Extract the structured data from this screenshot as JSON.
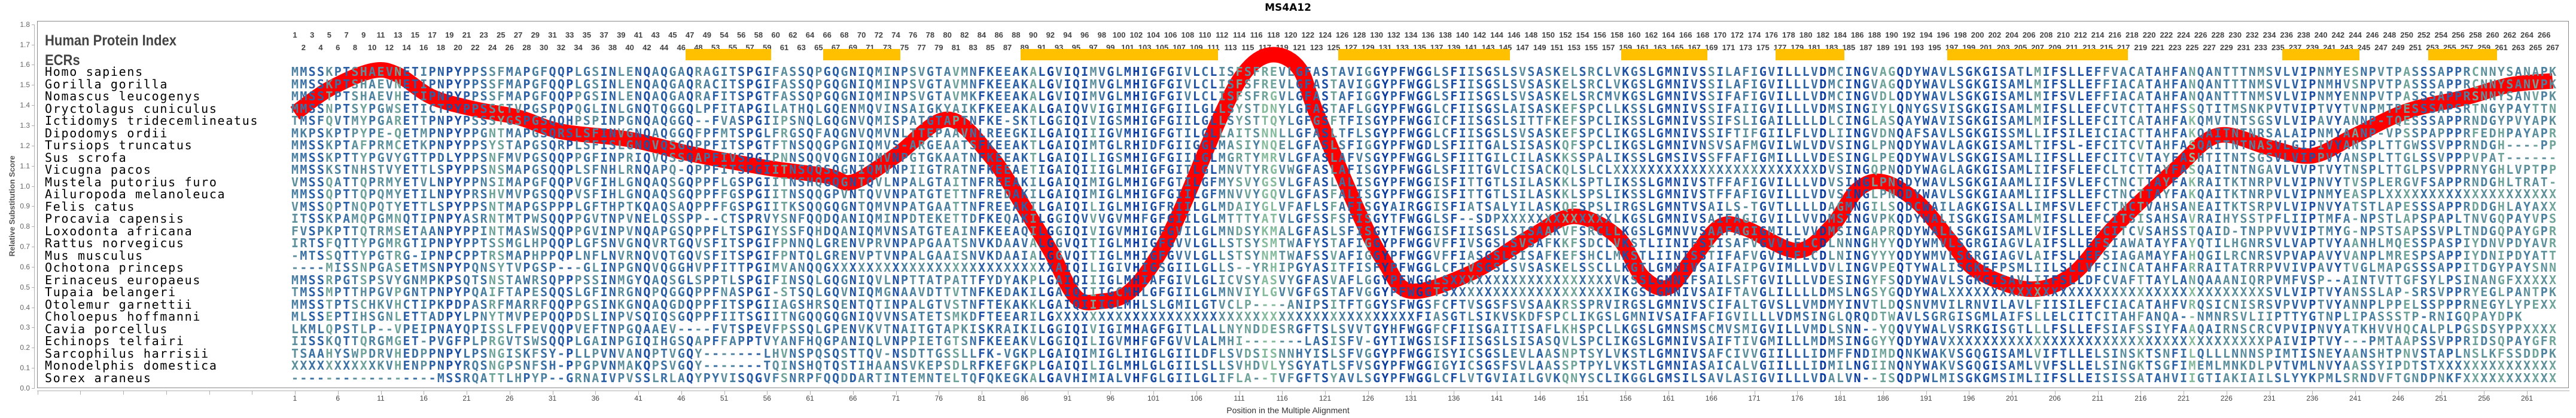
{
  "title": "MS4A12",
  "header": {
    "index_label": "Human Protein Index",
    "ecr_label": "ECRs"
  },
  "chart_data": {
    "type": "line",
    "title": "MS4A12",
    "xlabel": "Position in the Multiple Alignment",
    "ylabel": "Relative Substitution Score",
    "ylim": [
      0,
      1.8
    ],
    "ytick_step": 0.1,
    "xlim": [
      1,
      264
    ],
    "xtick_start": 1,
    "xtick_step": 5,
    "grid": false,
    "series": [
      {
        "name": "Relative Substitution Score",
        "color": "#ff0000",
        "points": [
          [
            1,
            1.36
          ],
          [
            5,
            1.48
          ],
          [
            10,
            1.57
          ],
          [
            13,
            1.55
          ],
          [
            17,
            1.44
          ],
          [
            22,
            1.38
          ],
          [
            27,
            1.34
          ],
          [
            32,
            1.27
          ],
          [
            40,
            1.23
          ],
          [
            47,
            1.16
          ],
          [
            56,
            1.09
          ],
          [
            63,
            1.05
          ],
          [
            66,
            1.02
          ],
          [
            71,
            1.15
          ],
          [
            77,
            1.33
          ],
          [
            82,
            1.15
          ],
          [
            86,
            0.89
          ],
          [
            89,
            0.68
          ],
          [
            92,
            0.45
          ],
          [
            95,
            0.43
          ],
          [
            98,
            0.47
          ],
          [
            101,
            0.62
          ],
          [
            104,
            0.86
          ],
          [
            109,
            1.36
          ],
          [
            112,
            1.58
          ],
          [
            115,
            1.65
          ],
          [
            118,
            1.58
          ],
          [
            120,
            1.36
          ],
          [
            125,
            0.86
          ],
          [
            128,
            0.62
          ],
          [
            131,
            0.48
          ],
          [
            138,
            0.57
          ],
          [
            145,
            0.75
          ],
          [
            150,
            0.85
          ],
          [
            155,
            0.75
          ],
          [
            158,
            0.55
          ],
          [
            161,
            0.5
          ],
          [
            164,
            0.65
          ],
          [
            167,
            0.8
          ],
          [
            170,
            0.79
          ],
          [
            176,
            0.68
          ],
          [
            180,
            0.8
          ],
          [
            183,
            0.98
          ],
          [
            186,
            1.02
          ],
          [
            190,
            0.92
          ],
          [
            194,
            0.72
          ],
          [
            197,
            0.58
          ],
          [
            203,
            0.49
          ],
          [
            208,
            0.56
          ],
          [
            213,
            0.8
          ],
          [
            220,
            1.08
          ],
          [
            225,
            1.25
          ],
          [
            231,
            1.19
          ],
          [
            236,
            1.15
          ],
          [
            241,
            1.25
          ],
          [
            247,
            1.37
          ],
          [
            254,
            1.44
          ],
          [
            259,
            1.5
          ],
          [
            264,
            1.52
          ]
        ]
      }
    ],
    "human_index": {
      "first": 1,
      "last": 267,
      "skipped": [
        50,
        51,
        52
      ]
    },
    "ecr_color": "#ffc000",
    "ecr_ranges": [
      [
        47,
        56
      ],
      [
        63,
        71
      ],
      [
        86,
        108
      ],
      [
        123,
        142
      ],
      [
        156,
        165
      ],
      [
        174,
        181
      ],
      [
        194,
        214
      ],
      [
        233,
        241
      ],
      [
        250,
        257
      ]
    ],
    "alignment": [
      {
        "species": "Homo sapiens",
        "sequence": "MMSSKPTSHAEVNETIPNPYPPSSFMAPGFQQPLGSINLENQAQGAQRAGITSPGIFASSQPGQGNIQMINPSVGTAVMNFKEEAKALGVIQIMVGLMHIGFGIVLCLISFSFREVLGFASTAVIGGYPFWGGLSFIISGSLSVSASKELSRCLVKGSLGMNIVSSILAFIGVILLLVDMCINGVAGQDYWAVLSGKGISATLMIFSLLEFFVACATAHFANQANTTTNMSVLVIPNMYESNPVTPASSSAPPRCNNYSANAPK"
      },
      {
        "species": "Gorilla gorilla",
        "sequence": "MMSSKPTSHAEVNETIPNPYPPSSFMAPGFQQPLGSINLENQAQGAQRACITSPGIFASSQPGQGNIQMINPSVGTAVMNFKEEAKALGVIQIMVGLMHIGFGIVLCLISFSFREVLGFASTAVIGGYPFWGGLSFIISGSLSVSASKELSRCLVKGSLGMNIVSSILAFIGVILLLVDMCINGVAGQDYWAVLSGKGISAMLMIFSLLEFFIACATAHFANQANTTTNMSVLVIPNMHVSNPVTPASSSAPPRCNNYSANVPK"
      },
      {
        "species": "Nomascus leucogenys",
        "sequence": "MMSSTPTSHAEVHETIPNPYPPSSFMAPGFQQPPGSINLENQAQGAQRAFITSPGTFASSQPGQGNIQMINPSVGTAVMKFKEEAKALGVIQIMVGLMHIGFGIVLCLISFSFRGVLGFASTAFIGGYPFWGGLSFIISGSLSVSASKELSRCMVKGSLGMNIVSSIFAFIGVILLLVDMCINGVDLQDYWAVLSGKGISAMLMIFSVLEFFIACATAHFANQANTTTNMSVLVIPNMYENNPVTPASSSAPPRSNNYSANVPK"
      },
      {
        "species": "Oryctolagus cuniculus",
        "sequence": "MMSSNPTSYPGWSETICTPYPPSSCTVPGSPQPQGLINLGNQTQGGQLPFITAPGILATHQLGQENMQVINSAIGKYAIKFKEEAKALGAIQVVIGIMHIGFGIILGLLSYSTDNYLGFASTAFLGGYPFWGGLCFIISGSLAISASKEFSPCLLKSSLGMNIVSSIFAIIGVILLLVDMSINGIYLQNYGSVISGKGISAMLMIFSLLEFCVTCTTAHFSSQTITMSNKPVTVIPTVYTVNPMTPESSSAPSRTNGYPAYTTN"
      },
      {
        "species": "Ictidomys tridecemlineatus",
        "sequence": "TMSFQVTMYPGARETTPNPYPSSSYGSPGSQQHPSPINPGNQAQGGQ--FVASPGIIPSNQLGQGNVQMISPATGTAPTNFKE-SKTLGGIQIVIGSMHIGFGIILGLLSYSTTQYLGFGSFTFISGYPFWGGICFIISGSLSITTFKEFSPCLIKSSLGMNIVSSIFSLIGAILLLLDLCINGLASQAYWAVISGKGISAMLMIFSLLEFCITCATAHFAKQMVTNTSGSVLVIPAVYANNP-TQESSSAPPRNDGYPVYAPK"
      },
      {
        "species": "Dipodomys ordii",
        "sequence": "MKPSKPTPYPE-QETMPNPYPPGNTMAPGSQRSLSFINVGNQAQGGQFPFMTSPGLFRGSQFAQGNVQMVNLTTEPAAVNLREEGKILGAIQIIIGVMHIGFGTILGLLAITSNNLLGFASLTFLSGYPFWGGLCFIISGSLSVSASKEFSPCLIKGSLGMNIVSSIFTIFGIILFLVDLIINGVDNQAFSAVLSGKGISSMLLIFSILEICIACTTAHFAKQAITNTNRSALAIPNMYAANP-VPSSPAPPPRFEDHPAYAPR"
      },
      {
        "species": "Tursiops truncatus",
        "sequence": "MMSSKPTAFPRMCETKPNPYPPSYSTAPGSQRPLSFISLGNQVQSGQPPFITSPGTFTNSQQGPGNIQMVS-ARGEAATSFKEEAKTLGAIQIMTGLRHIDFGIIGGLMASIYNQELGFASLSFIGGYPFWGDLSFIITGALSISASKQFSPCLIKGSLGMNIVNSVSAFMGVILWLVDVSINGLPNQDYWAVLAGKGISAMLTIFSL-EFCITCVTAHFASQAITNTNASVLGIPIVYANSPLTTGWSSVPPRNDGH----PP"
      },
      {
        "species": "Sus scrofa",
        "sequence": "MMSSKPTTYPGVYGTTPDLYPPSNFMVPGSQQPPGFINPRIQVQSSQAPFIVSPGIPNNSQQVQGNIQMVNPGTGKAATNFKEEAKTLGAIQILIGSMHIGFGIILGLMGRTYMRVLGFASLAFVSGYPFWGGLSFIITGILCILASKKSSPALIKSSLGMSIVSSFFAFIGMILLLVDESINGLPEQDYWAVLSGKGISAMLIIFSLLEFCITCVTAYFASHTITNTSGSVLVIPPVYANSPLTTGLSSVPPPVPAT------"
      },
      {
        "species": "Vicugna pacos",
        "sequence": "MMSSKSTNHSTVYETTLSPYPPSNSMAPGSQQPLSFNHLRNQAPQ-QPPFITSPGIITNSQQSQGNIQMVNPIIGTRATNFKEEAETIGAIQIIIGLMHIGFGITLGLMNVTYRGVWGFASLAFISGYPFWGGLSFIITGVLCISACKQLSLCLXXXXXXXXXXXXXXXXXXXXXXXXDVSINGQPNQDYWAGLAGKGISAMLIIFSFLEFCLTCTTAYFASQAITNTNGAVLVVPTVYTNSPLTTGLPSVPPRNYGHLVPTPP"
      },
      {
        "species": "Mustela putorius furo",
        "sequence": "VMSSQATTQPRMYETVLNPYPPNSIMAPGFQQPVGFIHLGNQAQSGQPPFLGSPGIITNSHQGQGNTQVLNPALGTAITNFREEAKILGAIQIMIGLMHIGFGTILGFMYSVYGSVLGFASLALISGYPFWGGISFITTGTLSILASKKLSPTLIKSSLGMNIVSTFFAFIGVILLLVDVSINGLPNQDYWAVLSGKGIAAMLIIFSVLEFCTNCTTAYFAKRAITKTNRPVLVIPNVYTVSPLERGVFSAPPRNDGHLTRAT-"
      },
      {
        "species": "Ailuropoda melanoleuca",
        "sequence": "MMSSQPTTQPQMYETILNPYPRSHVMVPGSQQPVSFIHLGNQAQSGQPPFFGSPGIITNSQQGPVNTQVVNPATGTETTNFREDAKILGAIQIMIGLMHIGFGIILGFMNVVYGQVLGFASFALISGYPFWGGISFITTGTLSILASKKLSPSLIKSSLGMNIVSTFFAFIGVILLLVDVSINGLPNQDYWAVLSGKGIAAMLIIFSLLEFCTNCTTAYFAKQAITKTNRPVLVIPNMYEASPLXXXXXXXXXXXXXXXXXXXX"
      },
      {
        "species": "Felis catus",
        "sequence": "VMSSQPTNQPQTYETTLSPYPPSNTMAPGSPPPLGFTHPTKQAQSAQPPFFGSPGIITKSQQGQGNTQMVNPATGAATTNFREEAKILGAIQILIGLMHIGFRIILGLMDAIYGLVFAFLSFAFISGYAIRGGISFIATSALYILASKQFSPSLIRGSLGMNTVSAILS-TGVTLLLLDAGMNGILSQDCWAILAGKGISALLIMFSVLEFCTNCTVAHSANEAITKTSRPVLVIPNVYATSTLAPESSSAPPRDDGHLAYAXX"
      },
      {
        "species": "Procavia capensis",
        "sequence": "ITSSKPAMQPGMNQTIPNPYASRNTMTPWSQQPPGVTNPVNELQSSPP--CTSPRVYSNFQQDQANIQMINPDTEKETTDFKEQAKILGGIQVVVGVMHFGFGIILGLMTTTYATVLGFSSFSFISGYTFWGGLSF--SDPXXXXXXXXXXXXXLKGSLGMNIVSAIFAGIGVILLVVDMSINGVPKQDYWALISGKGISAMLMIFSLLEFCITSISAHSAVRAIHYSSTPFLIIPTMFA-NPSTLAPSPAPLTNVGQPAYVPS"
      },
      {
        "species": "Loxodonta africana",
        "sequence": "FVSPKPTTQTRMSETAANPYPPINTMASWSQQPPGVINPVNQAPGSQPPFLTSPGIYSSFQHDQANIQMVNSATGTEAINFKEEAQILGGIQIVIGVMHIGFGVILGLMNDSYKMALGFASLSFISGYTFWGGISFIISGSLSISAAKVFSRCLLKGSLGMNVVSAAFAGIGMILLVVDMSINGAPRQDYWALLSGKGISAMLVIFSLLEFCITCVSAHSSTQAID-TNPPVVVIPTMYG-NPSTSAPSSVPLTNDGQPAYGPR"
      },
      {
        "species": "Rattus norvegicus",
        "sequence": "IRTSFQTTYPGMRGTIPNPYPPTSSMGLHPQQPLGFSNVGNQVRTGQVSFITSPGIFPNNQLGRENVPRVNPAPGAATSNVKDAAVALGGVQITIGLMHIGFGVVLGLLSTSYSMTWAFYSTAFIGGYPFWGGVFFIVSGSLSVSAFKKFSDCLVKSTLIINIFSIISAFVGVVLFLCDLNNNGHYYQDYWMVLSGRGIAGVLAIFSLLEFSIAWATAYFAYQTILHGNRSVLVAPTVYAANHLMQESSPASPIYDNVPDYAVR"
      },
      {
        "species": "Mus musculus",
        "sequence": "-MTSSQTTYPGTRG-IPNPCPPTRSMAPHPPQPLNFLNVRNQVQTGQVSFITSPGIFPNTQLGRENVPTVNPALGAAISNVKDAAIALGGVQITIGLMHIGFGVVLGLLSTSYNMTWAFSSVAFIGGYPFWGGVFFIASGSLSISAFKEFSHCLMKSTLIINISSTIFAFVGVILFLCDLNINGYYYQDYWMVLSGRGIAGVLAIFSLLEFSIAGAMAYFAHQGILRCNRSVPVAPAVYVANPLMRESPSAPPIYDNIPDYATT"
      },
      {
        "species": "Ochotona princeps",
        "sequence": "----MISSNPGASETMSNPYPQNSYTVPGSP---GLINPGNQVQGGHVPFITTPGIMVANQQGXXXXXXXXXXXXXXXXXXXXXXXXXXAIQILIGIVHIGSGIILGLLS--YRHIPGYASITFISFYPFWGGLCFIVSGSLSVSASKELSSCLLKGTLGMNIVSAIFAIPGVIMLLVDVLINGVPEQTYWALISGKEFPSMLIILSLLVFCINCATAHFARRAITATRRPVVIVPAVYTVGLMAPGSSSAPPITDGYPAYSNN"
      },
      {
        "species": "Erinaceus europaeus",
        "sequence": "MMSSRPGTSPSVYGNMPKPSQTSNSTAWRSQPPPSSINMGYQAQSGLSPPTLSPGIFINSQLGQGNIQVLNPTTATPATTFYDYAKPLGAIQIIIGLMHIAFGIVLGLICVSYASVYGFASVAFLGGYPFWGGLSXXXXXXXXXXXXXXXXXXXVKSSLGMNIFSAILSFTGVILLLVDESINGYFSQDYWAVLSGKGISAVLIIFSLLDFCVAFTTAYLANQAAANIQRPVMFVSP--AINTVTTGFSYLPSINANGFXXXXX"
      },
      {
        "species": "Tupaia belangeri",
        "sequence": "TMSSMPTTHPGVPGNTPNPYPQAIFTAPESQQSLGFINRGNQPQGGQPPFNASPGI-STSQLGQVNIQMGNAAVDTTVTNFKEDAKILGAIQIIIGCMHLGFGIILGLMNVIYLGVVGFGSTAFVGGYPFWGGTSXXXXXXXXXXXXXXXXXXXIKGSLGMNIVSAIFTAVGLILLLLDMSLNGSYGQDYWALXXXXXXXXXXXXXXXXXXXXXXXXXXXXXXXXXXXXXSVLVIPTVYANSSLAP-SRSVPPRYEGLPANTPK"
      },
      {
        "species": "Otolemur garnettii",
        "sequence": "MMSSTPTSCHKVHCTIPKPDPASRFMARRFQQPPGSINKGNQAQGDQPPFITSPGIIAGSHRSQENTQTINPALGTVSTNFTEKAKKLGAIQIIIGLMHLSLGMILGTVCLP----ANIPSITFTGGYSFWGSFCFTVSGSFSVSAAKRSSPRVIRGSLGMNIVSCIFALTGVSLLVMDMYINVTLDQSNVMVILRNVILAVLFIISILEFCIACATAHFVRQSICNISRSVPVVPTVYANNPLPPELSSPPPRNEGYLYPEXX"
      },
      {
        "species": "Choloepus hoffmanni",
        "sequence": "MLSSEPTIHSGNLETTADPYLPNYTMVPEPQQPDSLINPVSQIQSGQPPFIITSGIITNGQQGQGNIQVVNSATETSMKDFTEEARILGXXXXXXXXXXXXXXXXXXXXXXXXXXXXXXXXXXXXXXXXXXFIASGTLSIKVSKDFSPCLIKGSLGMNIVSAIFAFIGVILLLVDMSINGLQRQDTWAVLSGRGISGMLAIFSLLELCITCITAHFANQA--NMNRSVLIIPTTYGTNPLIPASSSTP-RNIGQPAYDPK"
      },
      {
        "species": "Cavia porcellus",
        "sequence": "LKMLQPSTLP--VPEIPNAYQPISSLFPEVQQPVEFTNPGQAAEV----FVTSPEVFPSSQLGPENVKVTNAITGTAPKISKRAIKILGGIQIVIGIMHAGFGITLALLNYNDDESRGFTSLSVVTGYHFWGGFCFIISGAITISAFLKHSPCLLKGSLGMNSMSCMVSMIGVILLVMDLSNN--YQQVYWALVSRKGISGTLLLFSLLEFSIAFSSIYFAAQAIRNSCRCVPVIPNVYATKHVVHQCALPLPGSDSYPPXXXX"
      },
      {
        "species": "Echinops telfairi",
        "sequence": "IISSKQTTQRGMGET-PVGFPLPRGVTSWSQQPLGAINPGIQIHGSQAPFFAPPTVYANFHQGPANIQLVNPPIETGTSNFKEEAKVLGGIQILIGVMHFGFGVVLALMHI-------LASISFV-GYTIWGSISFIISGSLSISASQVLSPCLIKGSLGMNIVSAIFTIVGMILLLMDMSINGGYYQDYWAVXXXXXXXXXXXXXXXXXXXXXXXXXXXXXXXXXXXXXPAIVIPTVY---PMTAAPSSVPPRIDSQPAYGFR"
      },
      {
        "species": "Sarcophilus harrisii",
        "sequence": "TSAAHYSWPDRVHEDPPNPYLPSNGISKFSY-PLLPVNVANQPTVGQY-------LHVNSPQSQSTTQV-NSDTTGSSLLFK-VGKPLGAIQIMIGLIHIGLGIILDFLSVDSISNNHYISLSFVGGYPFWGGISYICSGSLEVLAASNPTSYLVKSTLGMNIVSAFCIVVGIILLLIDMFFNDIMDQNKWAKVSGQGISAMLVIFTLLELSINSKTSNFILQLLLNNNSPIMTISNEYAANSHTPNVSTAPLNSLKFSSDDPK"
      },
      {
        "species": "Monodelphis domestica",
        "sequence": "XXXXXXXXXXKVHENPPNPYRQSNGPSNFSH-PPGPVNMAKQPSVGQY-------TQINSHQTQSTIHAANSVKEPSDLRFKEFGKPLGAIQILIGLMHLGLGIILSLLSVHDVLYSGYATLSFVSGYPFWGGIGYICSGSFSVLAASSPTPYLVKSTLGMNIASAICALVGIILLLIDMILNGIINQNYWAKVSGQGISAMLVVFSLLELSINGKTSGFIMEMLMNKDLPVTVMLNVYAASSYIPDTSTXXXXXXXXXXXXXX"
      },
      {
        "species": "Sorex araneus",
        "sequence": "-----------------MSSRQATTLHPYP--GRNAIVPVSSLRLAQYPYVISQGVFSNRPFQQDDARTINTEMNTELTQFQKEGKALGAVHIMIALVHFGLGIILGLIFLA--TVFGFTSYAVLSGYPFWGGLCFLVTGVIAILGVKQNYSCLIKGGLGMSILSAVLASIGVILLLVDALVN--ISQDPWLMISGKGMSIMLIIFSLLEISISSATAHVIIGTIAKIAILSLYYKPMLSRNDVFTGNDPNKFXXXXXXXXXXX"
      }
    ]
  }
}
